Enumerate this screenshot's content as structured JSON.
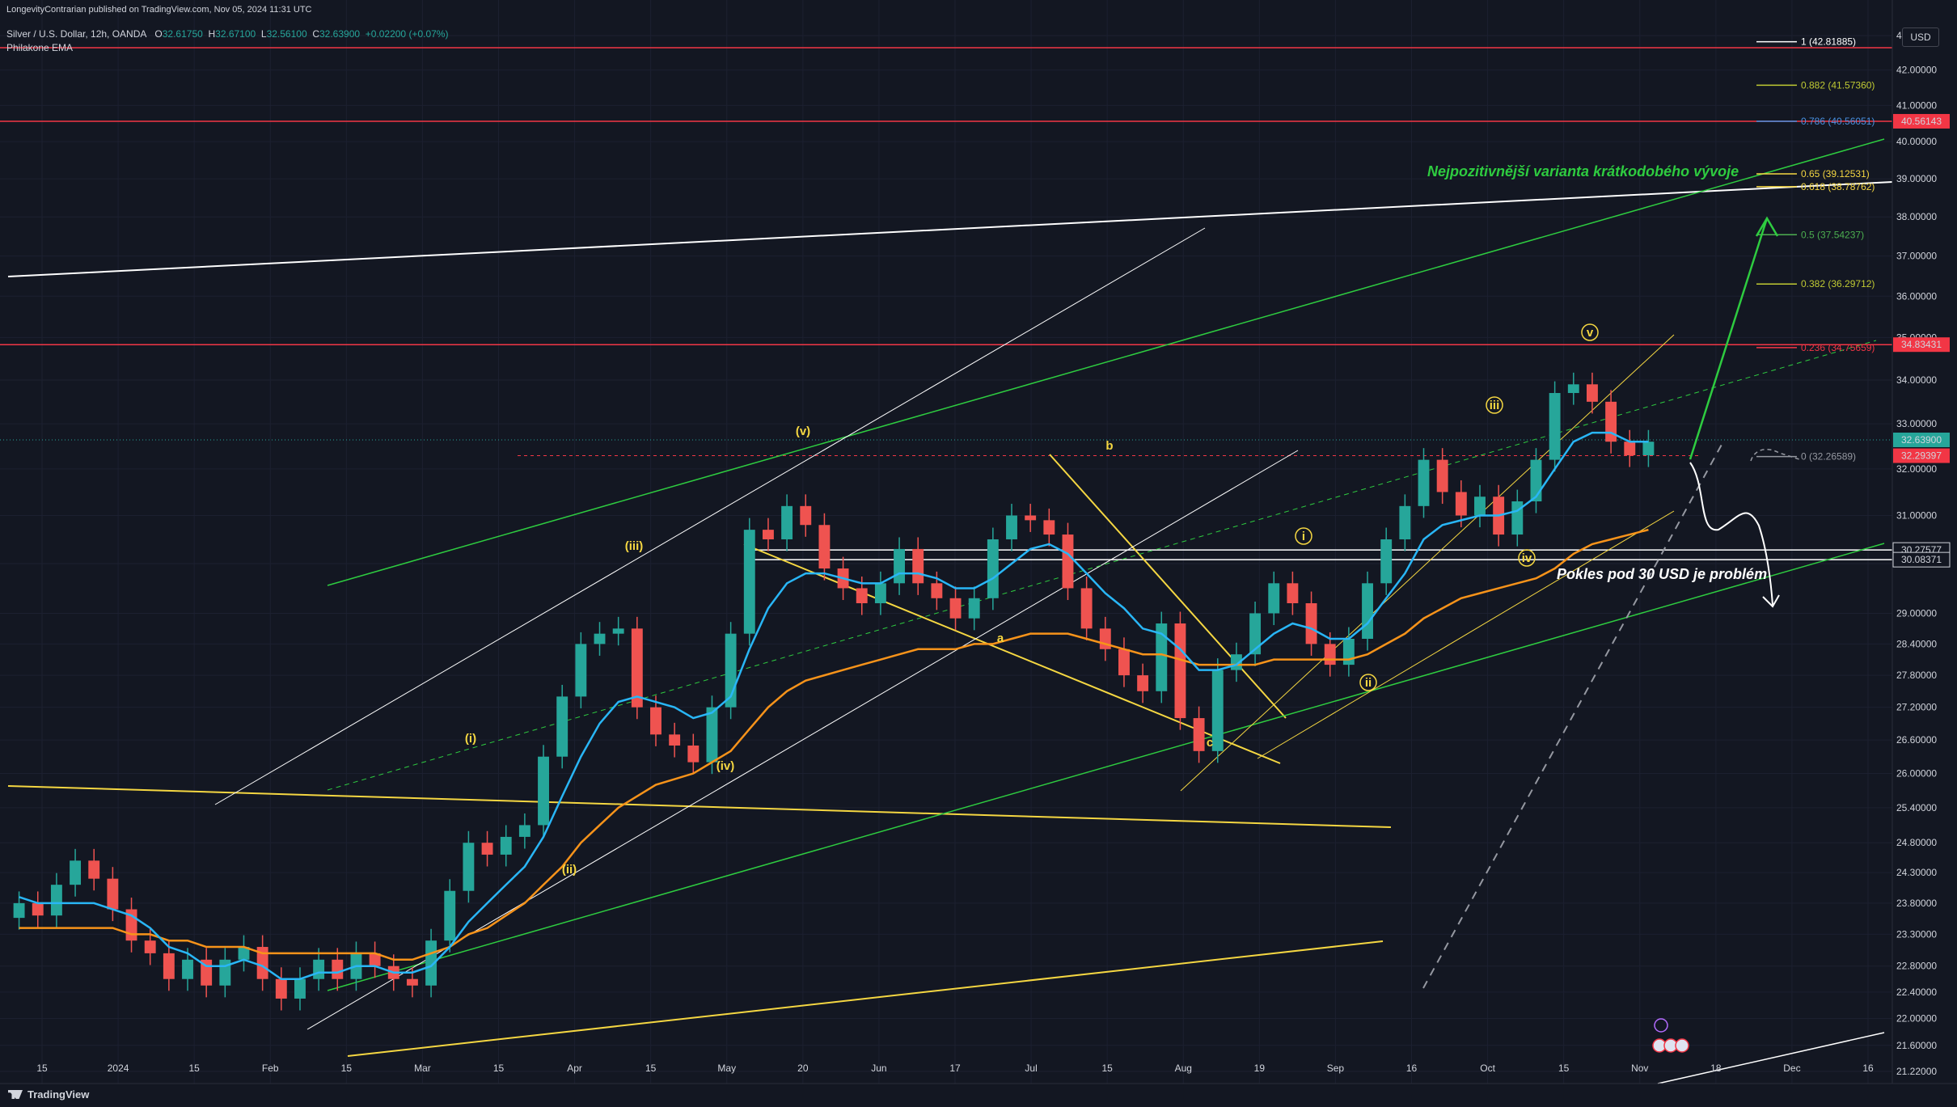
{
  "header": {
    "published": "LongevityContrarian published on TradingView.com, Nov 05, 2024 11:31 UTC",
    "symbol": "Silver / U.S. Dollar, 12h, OANDA",
    "o_label": "O",
    "o": "32.61750",
    "h_label": "H",
    "h": "32.67100",
    "l_label": "L",
    "l": "32.56100",
    "c_label": "C",
    "c": "32.63900",
    "change": "+0.02200 (+0.07%)",
    "indicator": "Philakone EMA"
  },
  "currency": "USD",
  "brand": "TradingView",
  "colors": {
    "background": "#131722",
    "up_candle": "#26a69a",
    "down_candle": "#ef5350",
    "ema_fast": "#29b6f6",
    "ema_slow": "#f7931a",
    "trend_yellow": "#f5d742",
    "trend_green": "#2ecc40",
    "resistance_red": "#f23645"
  },
  "annotations": {
    "bullish_note": "Nejpozitivnější varianta krátkodobého vývoje",
    "bearish_note": "Pokles pod 30 USD je problém"
  },
  "chart_data": {
    "type": "candlestick",
    "title": "Silver / U.S. Dollar, 12h, OANDA",
    "x_tick_labels": [
      "15",
      "2024",
      "15",
      "Feb",
      "15",
      "Mar",
      "15",
      "Apr",
      "15",
      "May",
      "20",
      "Jun",
      "17",
      "Jul",
      "15",
      "Aug",
      "19",
      "Sep",
      "16",
      "Oct",
      "15",
      "Nov",
      "18",
      "Dec",
      "16"
    ],
    "y_tick_labels": [
      "43.00000",
      "42.00000",
      "41.00000",
      "40.00000",
      "39.00000",
      "38.00000",
      "37.00000",
      "36.00000",
      "35.00000",
      "34.00000",
      "33.00000",
      "32.00000",
      "31.00000",
      "30.00000",
      "29.00000",
      "28.40000",
      "27.80000",
      "27.20000",
      "26.60000",
      "26.00000",
      "25.40000",
      "24.80000",
      "24.30000",
      "23.80000",
      "23.30000",
      "22.80000",
      "22.40000",
      "22.00000",
      "21.60000",
      "21.22000"
    ],
    "y_log_scale": true,
    "ylim": [
      21.0,
      43.6
    ],
    "series_close": [
      23.8,
      23.6,
      24.1,
      24.5,
      24.2,
      23.7,
      23.2,
      23.0,
      22.6,
      22.9,
      22.5,
      22.9,
      23.1,
      22.6,
      22.3,
      22.6,
      22.9,
      22.6,
      23.0,
      22.8,
      22.6,
      22.5,
      23.2,
      24.0,
      24.8,
      24.6,
      24.9,
      25.1,
      26.3,
      27.4,
      28.4,
      28.6,
      28.7,
      27.2,
      26.7,
      26.5,
      26.2,
      27.2,
      28.6,
      30.7,
      30.5,
      31.2,
      30.8,
      29.9,
      29.5,
      29.2,
      29.6,
      30.3,
      29.6,
      29.3,
      28.9,
      29.3,
      30.5,
      31.0,
      30.9,
      30.6,
      29.5,
      28.7,
      28.3,
      27.8,
      27.5,
      28.8,
      27.0,
      26.4,
      27.9,
      28.2,
      29.0,
      29.6,
      29.2,
      28.4,
      28.0,
      28.5,
      29.6,
      30.5,
      31.2,
      32.2,
      31.5,
      31.0,
      31.4,
      30.6,
      31.3,
      32.2,
      33.7,
      33.9,
      33.5,
      32.6,
      32.3,
      32.6
    ],
    "ema_fast_values": [
      23.9,
      23.8,
      23.8,
      23.8,
      23.8,
      23.7,
      23.6,
      23.4,
      23.1,
      23.0,
      22.8,
      22.8,
      22.9,
      22.8,
      22.6,
      22.6,
      22.7,
      22.7,
      22.8,
      22.8,
      22.7,
      22.7,
      22.8,
      23.1,
      23.5,
      23.8,
      24.1,
      24.4,
      24.9,
      25.6,
      26.3,
      26.9,
      27.3,
      27.4,
      27.3,
      27.2,
      27.0,
      27.1,
      27.4,
      28.3,
      29.1,
      29.6,
      29.8,
      29.8,
      29.7,
      29.6,
      29.6,
      29.8,
      29.8,
      29.7,
      29.5,
      29.5,
      29.7,
      30.0,
      30.3,
      30.4,
      30.2,
      29.8,
      29.4,
      29.1,
      28.7,
      28.6,
      28.3,
      27.9,
      27.9,
      28.0,
      28.3,
      28.6,
      28.8,
      28.7,
      28.5,
      28.5,
      28.8,
      29.3,
      29.8,
      30.5,
      30.8,
      30.9,
      31.0,
      31.0,
      31.1,
      31.4,
      32.0,
      32.6,
      32.8,
      32.8,
      32.6,
      32.6
    ],
    "ema_slow_values": [
      23.4,
      23.4,
      23.4,
      23.4,
      23.4,
      23.4,
      23.3,
      23.3,
      23.2,
      23.2,
      23.1,
      23.1,
      23.1,
      23.0,
      23.0,
      23.0,
      23.0,
      23.0,
      23.0,
      23.0,
      22.9,
      22.9,
      23.0,
      23.1,
      23.3,
      23.4,
      23.6,
      23.8,
      24.1,
      24.4,
      24.8,
      25.1,
      25.4,
      25.6,
      25.8,
      25.9,
      26.0,
      26.2,
      26.4,
      26.8,
      27.2,
      27.5,
      27.7,
      27.8,
      27.9,
      28.0,
      28.1,
      28.2,
      28.3,
      28.3,
      28.3,
      28.4,
      28.4,
      28.5,
      28.6,
      28.6,
      28.6,
      28.5,
      28.4,
      28.3,
      28.2,
      28.2,
      28.1,
      28.0,
      28.0,
      28.0,
      28.0,
      28.1,
      28.1,
      28.1,
      28.1,
      28.1,
      28.2,
      28.4,
      28.6,
      28.9,
      29.1,
      29.3,
      29.4,
      29.5,
      29.6,
      29.7,
      29.9,
      30.2,
      30.4,
      30.5,
      30.6,
      30.7
    ],
    "price_labels": [
      {
        "label": "40.56143",
        "value": 40.56,
        "color": "#f23645"
      },
      {
        "label": "34.83431",
        "value": 34.83,
        "color": "#f23645"
      },
      {
        "label": "32.63900",
        "value": 32.64,
        "color": "#26a69a"
      },
      {
        "label": "32.29397",
        "value": 32.29,
        "color": "#f23645"
      },
      {
        "label": "30.27577",
        "value": 30.28,
        "color": "#131722"
      },
      {
        "label": "30.08371",
        "value": 30.08,
        "color": "#131722"
      }
    ],
    "fib_levels": [
      {
        "label": "1 (42.81885)",
        "value": 42.82,
        "color": "#ffffff"
      },
      {
        "label": "0.882 (41.57360)",
        "value": 41.57,
        "color": "#c0ca33"
      },
      {
        "label": "0.786 (40.56051)",
        "value": 40.56,
        "color": "#4a90e2"
      },
      {
        "label": "0.65 (39.12531)",
        "value": 39.13,
        "color": "#f5d742"
      },
      {
        "label": "0.618 (38.78762)",
        "value": 38.79,
        "color": "#f5d742"
      },
      {
        "label": "0.5 (37.54237)",
        "value": 37.54,
        "color": "#4caf50"
      },
      {
        "label": "0.382 (36.29712)",
        "value": 36.3,
        "color": "#c0ca33"
      },
      {
        "label": "0.236 (34.75659)",
        "value": 34.76,
        "color": "#f23645"
      },
      {
        "label": "0 (32.26589)",
        "value": 32.27,
        "color": "#9598a1"
      }
    ],
    "wave_labels": [
      "(i)",
      "(ii)",
      "(iii)",
      "(iv)",
      "(v)",
      "a",
      "b",
      "c",
      "i",
      "ii",
      "iii",
      "iv",
      "v"
    ]
  }
}
